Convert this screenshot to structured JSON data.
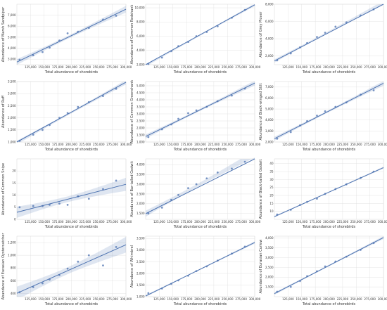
{
  "chart_data": [
    {
      "type": "scatter",
      "ylabel": "Abundance of Marsh Sandpiper",
      "xlabel": "Total abundance of shorebirds",
      "xlim": [
        100000,
        300000
      ],
      "ylim": [
        2500,
        8000
      ],
      "yticks": [
        3000,
        4000,
        5000,
        6000,
        7000
      ],
      "xticks": [
        125000,
        150000,
        175000,
        200000,
        225000,
        250000,
        275000,
        300000
      ],
      "x": [
        105000,
        130000,
        147000,
        160000,
        178000,
        193000,
        212000,
        232000,
        258000,
        282000
      ],
      "y": [
        2950,
        3350,
        3650,
        4050,
        4700,
        5350,
        5500,
        5850,
        6600,
        6950
      ]
    },
    {
      "type": "scatter",
      "ylabel": "Abundance of Common Redshank",
      "xlabel": "Total abundance of shorebirds",
      "xlim": [
        100000,
        300000
      ],
      "ylim": [
        2000,
        10500
      ],
      "yticks": [
        2000,
        4000,
        6000,
        8000,
        10000
      ],
      "xticks": [
        125000,
        150000,
        175000,
        200000,
        225000,
        250000,
        275000,
        300000
      ],
      "x": [
        105000,
        130000,
        147000,
        160000,
        178000,
        193000,
        212000,
        232000,
        258000,
        282000
      ],
      "y": [
        2100,
        3000,
        3900,
        4600,
        5200,
        6000,
        6600,
        7400,
        8600,
        9700
      ]
    },
    {
      "type": "scatter",
      "ylabel": "Abundance of Grey Plover",
      "xlabel": "Total abundance of shorebirds",
      "xlim": [
        100000,
        300000
      ],
      "ylim": [
        1000,
        8000
      ],
      "yticks": [
        2000,
        4000,
        6000,
        8000
      ],
      "xticks": [
        125000,
        150000,
        175000,
        200000,
        225000,
        250000,
        275000,
        300000
      ],
      "x": [
        105000,
        130000,
        147000,
        160000,
        178000,
        193000,
        212000,
        232000,
        258000,
        282000
      ],
      "y": [
        1500,
        2300,
        3000,
        3500,
        4200,
        4700,
        5400,
        5900,
        6700,
        7400
      ]
    },
    {
      "type": "scatter",
      "ylabel": "Abundance of Ruff",
      "xlabel": "Total abundance of shorebirds",
      "xlim": [
        100000,
        300000
      ],
      "ylim": [
        1000,
        3500
      ],
      "yticks": [
        1000,
        1500,
        2000,
        2500,
        3000,
        3500
      ],
      "yticklabels": [
        "1,000",
        "1,500",
        "2,000",
        "2,500",
        "3,000",
        "3,500"
      ],
      "xticks": [
        125000,
        150000,
        175000,
        200000,
        225000,
        250000,
        275000,
        300000
      ],
      "x": [
        105000,
        130000,
        147000,
        160000,
        178000,
        193000,
        212000,
        232000,
        258000,
        282000
      ],
      "y": [
        1050,
        1300,
        1500,
        1700,
        2000,
        2200,
        2450,
        2650,
        2900,
        3200
      ]
    },
    {
      "type": "scatter",
      "ylabel": "Abundance of Common Greenshank",
      "xlabel": "Total abundance of shorebirds",
      "xlim": [
        100000,
        300000
      ],
      "ylim": [
        1000,
        5300
      ],
      "yticks": [
        1000,
        1500,
        2000,
        2500,
        3000,
        3500,
        4000,
        4500,
        5000
      ],
      "xticks": [
        125000,
        150000,
        175000,
        200000,
        225000,
        250000,
        275000,
        300000
      ],
      "x": [
        105000,
        130000,
        147000,
        160000,
        178000,
        193000,
        212000,
        232000,
        258000,
        282000
      ],
      "y": [
        1350,
        1900,
        2250,
        2650,
        3050,
        3250,
        3500,
        3900,
        4300,
        4800
      ]
    },
    {
      "type": "scatter",
      "ylabel": "Abundance of Black-winged Stilt",
      "xlabel": "Total abundance of shorebirds",
      "xlim": [
        100000,
        300000
      ],
      "ylim": [
        2000,
        7500
      ],
      "yticks": [
        2000,
        3000,
        4000,
        5000,
        6000,
        7000
      ],
      "xticks": [
        125000,
        150000,
        175000,
        200000,
        225000,
        250000,
        275000,
        300000
      ],
      "x": [
        105000,
        130000,
        147000,
        160000,
        178000,
        193000,
        212000,
        232000,
        258000,
        282000
      ],
      "y": [
        2300,
        2900,
        3500,
        3900,
        4400,
        4800,
        5200,
        5600,
        6300,
        6700
      ]
    },
    {
      "type": "scatter",
      "ylabel": "Abundance of Common Snipe",
      "xlabel": "Total abundance of shorebirds",
      "xlim": [
        100000,
        300000
      ],
      "ylim": [
        0,
        25
      ],
      "yticks": [
        0,
        5,
        10,
        15,
        20
      ],
      "xticks": [
        125000,
        150000,
        175000,
        200000,
        225000,
        250000,
        275000,
        300000
      ],
      "x": [
        105000,
        130000,
        147000,
        160000,
        178000,
        193000,
        212000,
        232000,
        258000,
        282000
      ],
      "y": [
        5,
        5.5,
        5.5,
        6,
        6.5,
        6,
        9.5,
        8.5,
        12.5,
        16
      ]
    },
    {
      "type": "scatter",
      "ylabel": "Abundance of Bar-tailed Godwit",
      "xlabel": "Total abundance of shorebirds",
      "xlim": [
        100000,
        300000
      ],
      "ylim": [
        1200,
        4300
      ],
      "yticks": [
        1500,
        2000,
        2500,
        3000,
        3500,
        4000
      ],
      "xticks": [
        125000,
        150000,
        175000,
        200000,
        225000,
        250000,
        275000,
        300000
      ],
      "x": [
        105000,
        130000,
        147000,
        160000,
        178000,
        193000,
        212000,
        232000,
        258000,
        282000
      ],
      "y": [
        1500,
        1800,
        2200,
        2450,
        2800,
        3000,
        3300,
        3600,
        3800,
        4150
      ]
    },
    {
      "type": "scatter",
      "ylabel": "Abundance of Black-tailed Godwit",
      "xlabel": "Total abundance of shorebirds",
      "xlim": [
        100000,
        300000
      ],
      "ylim": [
        5,
        43
      ],
      "yticks": [
        10,
        15,
        20,
        25,
        30,
        35,
        40
      ],
      "xticks": [
        125000,
        150000,
        175000,
        200000,
        225000,
        250000,
        275000,
        300000
      ],
      "x": [
        105000,
        130000,
        147000,
        160000,
        178000,
        193000,
        212000,
        232000,
        258000,
        282000
      ],
      "y": [
        8,
        11,
        14,
        16,
        18,
        21,
        24,
        27,
        31,
        35
      ]
    },
    {
      "type": "scatter",
      "ylabel": "Abundance of Eurasian Oystercatcher",
      "xlabel": "Total abundance of shorebirds",
      "xlim": [
        100000,
        300000
      ],
      "ylim": [
        350,
        1300
      ],
      "yticks": [
        400,
        600,
        800,
        1000,
        1200
      ],
      "yticklabels": [
        "400",
        "600",
        "800",
        "1,000",
        "1,200"
      ],
      "xticks": [
        125000,
        150000,
        175000,
        200000,
        225000,
        250000,
        275000,
        300000
      ],
      "x": [
        105000,
        130000,
        147000,
        160000,
        178000,
        193000,
        212000,
        232000,
        258000,
        282000
      ],
      "y": [
        420,
        500,
        560,
        620,
        690,
        790,
        900,
        1000,
        840,
        1130
      ]
    },
    {
      "type": "scatter",
      "ylabel": "Abundance of Whimbrel",
      "xlabel": "Total abundance of shorebirds",
      "xlim": [
        100000,
        300000
      ],
      "ylim": [
        1000,
        3600
      ],
      "yticks": [
        1000,
        1500,
        2000,
        2500,
        3000,
        3500
      ],
      "yticklabels": [
        "1,000",
        "1,500",
        "2,000",
        "2,500",
        "3,000",
        "3,500"
      ],
      "xticks": [
        125000,
        150000,
        175000,
        200000,
        225000,
        250000,
        275000,
        300000
      ],
      "x": [
        105000,
        130000,
        147000,
        160000,
        178000,
        193000,
        212000,
        232000,
        258000,
        282000
      ],
      "y": [
        1150,
        1350,
        1550,
        1700,
        1900,
        2100,
        2300,
        2550,
        2850,
        3150
      ]
    },
    {
      "type": "scatter",
      "ylabel": "Abundance of Eurasian Curlew",
      "xlabel": "Total abundance of shorebirds",
      "xlim": [
        100000,
        300000
      ],
      "ylim": [
        1000,
        4100
      ],
      "yticks": [
        1500,
        2000,
        2500,
        3000,
        3500,
        4000
      ],
      "yticklabels": [
        "1,500",
        "2,000",
        "2,500",
        "3,000",
        "3,500",
        "4,000"
      ],
      "xticks": [
        125000,
        150000,
        175000,
        200000,
        225000,
        250000,
        275000,
        300000
      ],
      "x": [
        105000,
        130000,
        147000,
        160000,
        178000,
        193000,
        212000,
        232000,
        258000,
        282000
      ],
      "y": [
        1250,
        1500,
        1800,
        2050,
        2300,
        2550,
        2800,
        3050,
        3400,
        3750
      ]
    }
  ],
  "colors": {
    "accent": "#4c72b0",
    "band": "#4c72b0"
  }
}
